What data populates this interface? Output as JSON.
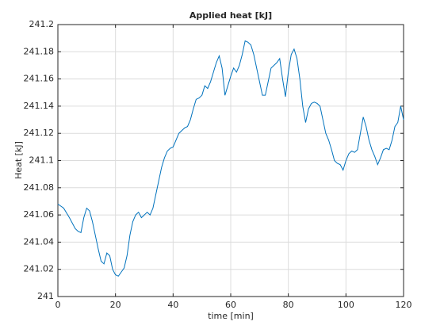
{
  "chart_data": {
    "type": "line",
    "title": "Applied heat [kJ]",
    "xlabel": "time [min]",
    "ylabel": "Heat [kJ]",
    "x": [
      0,
      2,
      4,
      6,
      7,
      8,
      9,
      10,
      11,
      12,
      13,
      14,
      15,
      16,
      17,
      18,
      19,
      20,
      21,
      22,
      23,
      24,
      25,
      26,
      27,
      28,
      29,
      30,
      31,
      32,
      33,
      34,
      35,
      36,
      37,
      38,
      39,
      40,
      41,
      42,
      43,
      44,
      45,
      46,
      47,
      48,
      49,
      50,
      51,
      52,
      53,
      54,
      55,
      56,
      57,
      58,
      59,
      60,
      61,
      62,
      63,
      64,
      65,
      66,
      67,
      68,
      69,
      70,
      71,
      72,
      73,
      74,
      75,
      76,
      77,
      78,
      79,
      80,
      81,
      82,
      83,
      84,
      85,
      86,
      87,
      88,
      89,
      90,
      91,
      92,
      93,
      94,
      95,
      96,
      97,
      98,
      99,
      100,
      101,
      102,
      103,
      104,
      105,
      106,
      107,
      108,
      109,
      110,
      111,
      112,
      113,
      114,
      115,
      116,
      117,
      118,
      119,
      120
    ],
    "values": [
      241.068,
      241.065,
      241.058,
      241.05,
      241.048,
      241.047,
      241.058,
      241.065,
      241.063,
      241.055,
      241.045,
      241.035,
      241.026,
      241.024,
      241.032,
      241.03,
      241.02,
      241.016,
      241.015,
      241.018,
      241.021,
      241.03,
      241.045,
      241.055,
      241.06,
      241.062,
      241.058,
      241.06,
      241.062,
      241.06,
      241.065,
      241.075,
      241.085,
      241.095,
      241.102,
      241.107,
      241.109,
      241.11,
      241.115,
      241.12,
      241.122,
      241.124,
      241.125,
      241.13,
      241.138,
      241.145,
      241.146,
      241.148,
      241.155,
      241.153,
      241.158,
      241.165,
      241.172,
      241.177,
      241.168,
      241.148,
      241.155,
      241.162,
      241.168,
      241.165,
      241.17,
      241.178,
      241.188,
      241.187,
      241.185,
      241.178,
      241.168,
      241.158,
      241.148,
      241.148,
      241.158,
      241.168,
      241.17,
      241.172,
      241.175,
      241.16,
      241.147,
      241.165,
      241.178,
      241.182,
      241.175,
      241.16,
      241.14,
      241.128,
      241.138,
      241.142,
      241.143,
      241.142,
      241.14,
      241.13,
      241.12,
      241.115,
      241.108,
      241.1,
      241.098,
      241.097,
      241.093,
      241.1,
      241.105,
      241.107,
      241.106,
      241.108,
      241.12,
      241.132,
      241.125,
      241.115,
      241.108,
      241.103,
      241.097,
      241.102,
      241.108,
      241.109,
      241.108,
      241.115,
      241.125,
      241.128,
      241.14,
      241.13
    ],
    "color": "#0072bd",
    "xlim": [
      0,
      120
    ],
    "xticks": [
      0,
      20,
      40,
      60,
      80,
      100,
      120
    ],
    "ylim": [
      241,
      241.2
    ],
    "yticks": [
      241,
      241.02,
      241.04,
      241.06,
      241.08,
      241.1,
      241.12,
      241.14,
      241.16,
      241.18,
      241.2
    ],
    "grid": true
  }
}
